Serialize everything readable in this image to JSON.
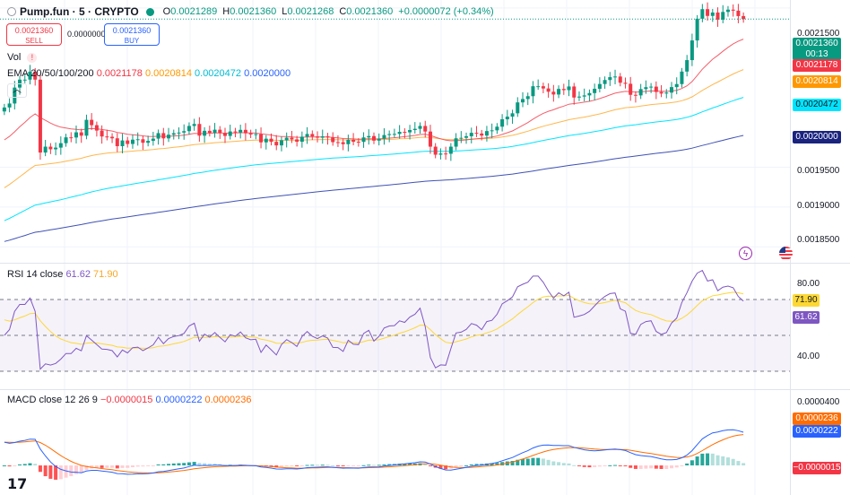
{
  "header": {
    "symbol": "Pump.fun · 5 · CRYPTO",
    "ohlc": [
      {
        "k": "O",
        "v": "0.0021289"
      },
      {
        "k": "H",
        "v": "0.0021360"
      },
      {
        "k": "L",
        "v": "0.0021268"
      },
      {
        "k": "C",
        "v": "0.0021360"
      }
    ],
    "change": "+0.0000072 (+0.34%)",
    "sell_price": "0.0021360",
    "sell_label": "SELL",
    "spread": "0.0000000",
    "buy_price": "0.0021360",
    "buy_label": "BUY"
  },
  "legends": {
    "vol": "Vol",
    "ema_title": "EMA 20/50/100/200",
    "ema20": "0.0021178",
    "ema50": "0.0020814",
    "ema100": "0.0020472",
    "ema200": "0.0020000",
    "rsi_title": "RSI 14 close",
    "rsi_value": "61.62",
    "rsi_ma": "71.90",
    "macd_title": "MACD close 12 26 9",
    "macd_hist": "−0.0000015",
    "macd_line": "0.0000222",
    "macd_signal": "0.0000236"
  },
  "price_axis": {
    "ticks": [
      "0.0021500",
      "0.0019500",
      "0.0019000",
      "0.0018500"
    ],
    "last_price": "0.0021360",
    "countdown": "00:13",
    "ema20_label": "0.0021178",
    "ema50_label": "0.0020814",
    "ema100_label": "0.0020472",
    "ema200_label": "0.0020000"
  },
  "rsi_axis": {
    "ticks": [
      "80.00",
      "40.00"
    ],
    "ma_label": "71.90",
    "value_label": "61.62"
  },
  "macd_axis": {
    "ticks": [
      "0.0000400"
    ],
    "signal_label": "0.0000236",
    "macd_label": "0.0000222",
    "hist_label": "−0.0000015"
  },
  "colors": {
    "up": "#089981",
    "down": "#f23645",
    "ema20": "#f23645",
    "ema50": "#ff9800",
    "ema100": "#00e5ff",
    "ema200": "#2962ff",
    "rsi": "#7e57c2",
    "rsi_ma": "#fdd835",
    "macd": "#2962ff",
    "signal": "#ff6d00"
  },
  "icons": {
    "logo": "tradingview-logo-icon",
    "collapse": "chevron-up-icon",
    "alert": "lightning-icon",
    "flag": "us-flag-icon"
  },
  "chart_data": [
    {
      "type": "candlestick",
      "title": "Pump.fun · 5 · CRYPTO",
      "ylim": [
        0.00183,
        0.00216
      ],
      "yticks": [
        0.00215,
        0.00195,
        0.0019,
        0.00185
      ],
      "candles_close": [
        0.002025,
        0.00203,
        0.00205,
        0.00206,
        0.00206,
        0.00207,
        0.00206,
        0.0019684,
        0.0019758,
        0.0019725,
        0.0019746,
        0.0019802,
        0.0019875,
        0.0019873,
        0.0019938,
        0.0019896,
        0.0020095,
        0.0020028,
        0.001996,
        0.0019886,
        0.0019882,
        0.0019863,
        0.0019764,
        0.0019836,
        0.0019792,
        0.0019846,
        0.0019851,
        0.0019807,
        0.0019831,
        0.0019859,
        0.0019928,
        0.0019862,
        0.0019908,
        0.0019927,
        0.0019935,
        0.0019953,
        0.0020018,
        0.0020043,
        0.0019896,
        0.0019957,
        0.0019931,
        0.0019971,
        0.001993,
        0.0019893,
        0.0019949,
        0.0019936,
        0.0019969,
        0.0019926,
        0.0019911,
        0.0019915,
        0.0019812,
        0.0019858,
        0.0019819,
        0.0019774,
        0.0019838,
        0.0019871,
        0.0019849,
        0.001982,
        0.0019883,
        0.0019917,
        0.0019886,
        0.0019871,
        0.0019887,
        0.0019874,
        0.0019815,
        0.0019814,
        0.0019789,
        0.0019844,
        0.001982,
        0.0019818,
        0.0019874,
        0.0019891,
        0.0019834,
        0.0019858,
        0.0019904,
        0.0019916,
        0.0019918,
        0.0019944,
        0.0019938,
        0.0019967,
        0.0019982,
        0.0020018,
        0.0019948,
        0.0019758,
        0.0019657,
        0.0019672,
        0.0019669,
        0.0019758,
        0.0019863,
        0.0019869,
        0.0019889,
        0.0019932,
        0.0019923,
        0.0019897,
        0.0019954,
        0.0019963,
        0.0020009,
        0.0020102,
        0.0020135,
        0.0020177,
        0.0020314,
        0.0020356,
        0.0020392,
        0.0020517,
        0.0020517,
        0.0020489,
        0.0020448,
        0.0020413,
        0.0020483,
        0.0020468,
        0.0020514,
        0.0020375,
        0.0020387,
        0.0020402,
        0.0020431,
        0.0020485,
        0.0020545,
        0.0020595,
        0.0020631,
        0.0020639,
        0.0020561,
        0.0020548,
        0.0020409,
        0.0020402,
        0.0020481,
        0.0020505,
        0.0020512,
        0.0020445,
        0.0020425,
        0.0020437,
        0.0020506,
        0.0020544,
        0.0020701,
        0.0020845,
        0.0021092,
        0.0021365,
        0.0021485,
        0.00214,
        0.0021443,
        0.0021353,
        0.002145,
        0.0021479,
        0.0021466,
        0.0021398,
        0.002136
      ]
    },
    {
      "type": "line",
      "title": "RSI 14 close",
      "ylim": [
        20,
        90
      ],
      "yticks": [
        80,
        40
      ],
      "series": [
        {
          "name": "RSI",
          "values_note": "oscillates 40–80, last 61.62"
        }
      ]
    },
    {
      "type": "line",
      "title": "MACD close 12 26 9",
      "yticks": [
        4e-05
      ],
      "series": [
        {
          "name": "MACD",
          "last": 2.22e-05
        },
        {
          "name": "Signal",
          "last": 2.36e-05
        },
        {
          "name": "Histogram",
          "last": -1.5e-06
        }
      ]
    }
  ]
}
